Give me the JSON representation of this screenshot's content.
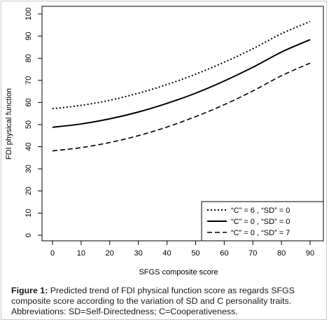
{
  "chart_data": {
    "type": "line",
    "xlabel": "SFGS composite score",
    "ylabel": "FDI physical function",
    "xlim": [
      0,
      90
    ],
    "ylim": [
      0,
      100
    ],
    "x_ticks": [
      "0",
      "10",
      "20",
      "30",
      "40",
      "50",
      "60",
      "70",
      "80",
      "90"
    ],
    "y_ticks": [
      "0",
      "10",
      "20",
      "30",
      "40",
      "50",
      "60",
      "70",
      "80",
      "90",
      "100"
    ],
    "x": [
      0,
      10,
      20,
      30,
      40,
      50,
      60,
      70,
      80,
      90
    ],
    "legend_position": "bottom-right",
    "grid": false,
    "series": [
      {
        "name": "“C” = 6 , “SD” = 0",
        "line_style": "dotted",
        "values": [
          57.2,
          58.7,
          61.0,
          64.2,
          68.1,
          72.8,
          78.2,
          84.3,
          91.1,
          96.6
        ]
      },
      {
        "name": "“C” = 0 , “SD” = 0",
        "line_style": "solid",
        "values": [
          48.8,
          50.3,
          52.6,
          55.7,
          59.6,
          64.2,
          69.7,
          75.9,
          82.8,
          88.4
        ]
      },
      {
        "name": "“C” = 0 , “SD” = 7",
        "line_style": "dashed",
        "values": [
          38.1,
          39.6,
          41.9,
          45.0,
          48.9,
          53.6,
          59.0,
          65.2,
          72.1,
          77.8
        ]
      }
    ]
  },
  "caption": {
    "label": "Figure 1:",
    "text": "Predicted trend of FDI physical function score as regards SFGS composite score according to the variation of SD and C personality traits. Abbreviations: SD=Self-Directedness; C=Cooperativeness."
  },
  "colors": {
    "line": "#000000",
    "axis": "#000000",
    "caption_text": "#1a1a1a"
  }
}
